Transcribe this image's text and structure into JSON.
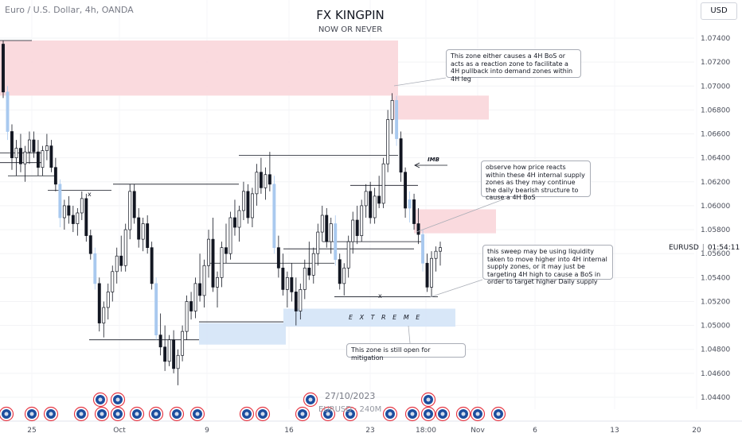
{
  "header": {
    "symbol_desc": "Euro / U.S. Dollar, 4h, OANDA",
    "title": "FX KINGPIN",
    "subtitle": "NOW OR NEVER",
    "currency": "USD"
  },
  "price_label": {
    "symbol": "EURUSD",
    "countdown": "01:54:11"
  },
  "watermark": {
    "date": "27/10/2023",
    "symbol_line": "EURUSD · 240M"
  },
  "colors": {
    "up_candle": "#ffffff",
    "down_candle": "#131722",
    "supply_zone": "#f9d6da",
    "demand_zone": "#d4e4f7",
    "highlight_candle": "#a9c9ef"
  },
  "annotations": {
    "callout_top": "This zone either causes a 4H BoS or acts as a reaction zone to facilitate a 4H pullback into demand zones within 4H leg",
    "callout_mid": "observe how price reacts within these 4H internal supply zones as they may continue the daily bearish structure to cause a 4H BoS",
    "callout_low": "this sweep may be using liquidity taken to move higher into 4H internal supply zones, or it may just be targeting 4H high to cause a BoS in order to target higher Daily supply",
    "callout_bottom": "This zone is still open for mitigation",
    "extreme_label": "E X T R E M E",
    "imb_label": "IMB",
    "x_mark": "x"
  },
  "chart_data": {
    "type": "candlestick",
    "symbol": "EURUSD",
    "timeframe": "4h",
    "ylim": [
      1.043,
      1.076
    ],
    "y_ticks": [
      1.044,
      1.046,
      1.048,
      1.05,
      1.052,
      1.054,
      1.056,
      1.058,
      1.06,
      1.062,
      1.064,
      1.066,
      1.068,
      1.07,
      1.072,
      1.074
    ],
    "y_tick_labels": [
      "1.04400",
      "1.04600",
      "1.04800",
      "1.05000",
      "1.05200",
      "1.05400",
      "1.05600",
      "1.05800",
      "1.06000",
      "1.06200",
      "1.06400",
      "1.06600",
      "1.06800",
      "1.07000",
      "1.07200",
      "1.07400"
    ],
    "x_ticks": [
      "25",
      "Oct",
      "9",
      "16",
      "23",
      "18:00",
      "Nov",
      "6",
      "13",
      "20"
    ],
    "candles": [
      [
        1.0735,
        1.0738,
        1.069,
        1.0695
      ],
      [
        1.0695,
        1.07,
        1.0655,
        1.0662
      ],
      [
        1.0662,
        1.0668,
        1.063,
        1.064
      ],
      [
        1.064,
        1.0655,
        1.0625,
        1.0648
      ],
      [
        1.0648,
        1.066,
        1.0628,
        1.0635
      ],
      [
        1.0635,
        1.065,
        1.062,
        1.0645
      ],
      [
        1.0645,
        1.0662,
        1.0635,
        1.0655
      ],
      [
        1.0655,
        1.0662,
        1.064,
        1.0645
      ],
      [
        1.0645,
        1.0655,
        1.0625,
        1.0632
      ],
      [
        1.0632,
        1.065,
        1.0625,
        1.0646
      ],
      [
        1.0646,
        1.066,
        1.0638,
        1.065
      ],
      [
        1.065,
        1.0655,
        1.0628,
        1.0632
      ],
      [
        1.0632,
        1.064,
        1.0612,
        1.0618
      ],
      [
        1.0618,
        1.0622,
        1.0582,
        1.059
      ],
      [
        1.059,
        1.0605,
        1.058,
        1.06
      ],
      [
        1.06,
        1.0608,
        1.0585,
        1.0592
      ],
      [
        1.0592,
        1.06,
        1.0578,
        1.0585
      ],
      [
        1.0585,
        1.0598,
        1.0575,
        1.0594
      ],
      [
        1.0594,
        1.0612,
        1.0588,
        1.0606
      ],
      [
        1.0606,
        1.061,
        1.057,
        1.0575
      ],
      [
        1.0575,
        1.058,
        1.0555,
        1.056
      ],
      [
        1.056,
        1.0565,
        1.053,
        1.0535
      ],
      [
        1.0535,
        1.054,
        1.0495,
        1.0502
      ],
      [
        1.0502,
        1.052,
        1.049,
        1.0515
      ],
      [
        1.0515,
        1.0535,
        1.0505,
        1.0528
      ],
      [
        1.0528,
        1.055,
        1.052,
        1.0545
      ],
      [
        1.0545,
        1.0565,
        1.0535,
        1.0558
      ],
      [
        1.0558,
        1.0575,
        1.0545,
        1.055
      ],
      [
        1.055,
        1.0585,
        1.0545,
        1.058
      ],
      [
        1.058,
        1.0618,
        1.0572,
        1.0612
      ],
      [
        1.0612,
        1.0618,
        1.0585,
        1.059
      ],
      [
        1.059,
        1.0598,
        1.0565,
        1.0572
      ],
      [
        1.0572,
        1.059,
        1.0562,
        1.0585
      ],
      [
        1.0585,
        1.0592,
        1.056,
        1.0565
      ],
      [
        1.0565,
        1.057,
        1.053,
        1.0535
      ],
      [
        1.0535,
        1.054,
        1.0488,
        1.0492
      ],
      [
        1.0492,
        1.051,
        1.0475,
        1.0482
      ],
      [
        1.0482,
        1.05,
        1.0462,
        1.047
      ],
      [
        1.047,
        1.0492,
        1.0466,
        1.0488
      ],
      [
        1.0488,
        1.0496,
        1.046,
        1.0464
      ],
      [
        1.0464,
        1.048,
        1.045,
        1.0475
      ],
      [
        1.0475,
        1.05,
        1.047,
        1.0495
      ],
      [
        1.0495,
        1.0525,
        1.0488,
        1.052
      ],
      [
        1.052,
        1.0528,
        1.0505,
        1.0512
      ],
      [
        1.0512,
        1.054,
        1.0506,
        1.0535
      ],
      [
        1.0535,
        1.056,
        1.052,
        1.0525
      ],
      [
        1.0525,
        1.0555,
        1.0515,
        1.055
      ],
      [
        1.055,
        1.058,
        1.054,
        1.0572
      ],
      [
        1.0572,
        1.059,
        1.0528,
        1.0532
      ],
      [
        1.0532,
        1.0545,
        1.0515,
        1.054
      ],
      [
        1.054,
        1.057,
        1.0532,
        1.0565
      ],
      [
        1.0565,
        1.0585,
        1.0552,
        1.056
      ],
      [
        1.056,
        1.0595,
        1.0555,
        1.059
      ],
      [
        1.059,
        1.0605,
        1.0575,
        1.0582
      ],
      [
        1.0582,
        1.06,
        1.057,
        1.0596
      ],
      [
        1.0596,
        1.062,
        1.0588,
        1.0612
      ],
      [
        1.0612,
        1.0618,
        1.0585,
        1.059
      ],
      [
        1.059,
        1.0615,
        1.0582,
        1.061
      ],
      [
        1.061,
        1.0635,
        1.06,
        1.0628
      ],
      [
        1.0628,
        1.064,
        1.061,
        1.0615
      ],
      [
        1.0615,
        1.0632,
        1.0605,
        1.0626
      ],
      [
        1.0626,
        1.0645,
        1.0612,
        1.0618
      ],
      [
        1.0618,
        1.0625,
        1.056,
        1.0565
      ],
      [
        1.0565,
        1.0575,
        1.054,
        1.0548
      ],
      [
        1.0548,
        1.056,
        1.0525,
        1.053
      ],
      [
        1.053,
        1.0545,
        1.0515,
        1.054
      ],
      [
        1.054,
        1.0552,
        1.052,
        1.0528
      ],
      [
        1.0528,
        1.054,
        1.05,
        1.0512
      ],
      [
        1.0512,
        1.0535,
        1.0505,
        1.053
      ],
      [
        1.053,
        1.0555,
        1.0522,
        1.0548
      ],
      [
        1.0548,
        1.057,
        1.0538,
        1.0542
      ],
      [
        1.0542,
        1.0565,
        1.0535,
        1.056
      ],
      [
        1.056,
        1.0585,
        1.055,
        1.0578
      ],
      [
        1.0578,
        1.06,
        1.057,
        1.0592
      ],
      [
        1.0592,
        1.0598,
        1.0565,
        1.057
      ],
      [
        1.057,
        1.059,
        1.056,
        1.0585
      ],
      [
        1.0585,
        1.0592,
        1.055,
        1.0555
      ],
      [
        1.0555,
        1.056,
        1.053,
        1.0535
      ],
      [
        1.0535,
        1.0552,
        1.0525,
        1.0548
      ],
      [
        1.0548,
        1.0575,
        1.054,
        1.057
      ],
      [
        1.057,
        1.0595,
        1.056,
        1.0588
      ],
      [
        1.0588,
        1.06,
        1.0568,
        1.0575
      ],
      [
        1.0575,
        1.0605,
        1.057,
        1.06
      ],
      [
        1.06,
        1.0618,
        1.059,
        1.0612
      ],
      [
        1.0612,
        1.062,
        1.0585,
        1.059
      ],
      [
        1.059,
        1.0615,
        1.0585,
        1.0608
      ],
      [
        1.0608,
        1.0625,
        1.0598,
        1.0602
      ],
      [
        1.0602,
        1.064,
        1.0598,
        1.0635
      ],
      [
        1.0635,
        1.068,
        1.0628,
        1.0672
      ],
      [
        1.0672,
        1.0694,
        1.066,
        1.0688
      ],
      [
        1.0688,
        1.0692,
        1.065,
        1.0656
      ],
      [
        1.0656,
        1.0662,
        1.062,
        1.0628
      ],
      [
        1.0628,
        1.0632,
        1.059,
        1.0598
      ],
      [
        1.0598,
        1.0612,
        1.0586,
        1.0605
      ],
      [
        1.0605,
        1.061,
        1.058,
        1.0585
      ],
      [
        1.0585,
        1.0598,
        1.0568,
        1.0576
      ],
      [
        1.0576,
        1.058,
        1.0545,
        1.0552
      ],
      [
        1.0552,
        1.056,
        1.0528,
        1.0532
      ],
      [
        1.0532,
        1.0562,
        1.0524,
        1.0556
      ],
      [
        1.0556,
        1.0566,
        1.0545,
        1.0562
      ],
      [
        1.0562,
        1.057,
        1.055,
        1.0565
      ]
    ],
    "zones": [
      {
        "name": "4H supply zone",
        "from": 1.0692,
        "to": 1.0738
      },
      {
        "name": "4H internal supply zone",
        "from": 1.0672,
        "to": 1.0692
      },
      {
        "name": "4H internal supply zone",
        "from": 1.0577,
        "to": 1.0597
      },
      {
        "name": "extreme demand zone",
        "from": 1.0499,
        "to": 1.0514
      },
      {
        "name": "demand zone",
        "from": 1.0484,
        "to": 1.0502
      }
    ]
  }
}
